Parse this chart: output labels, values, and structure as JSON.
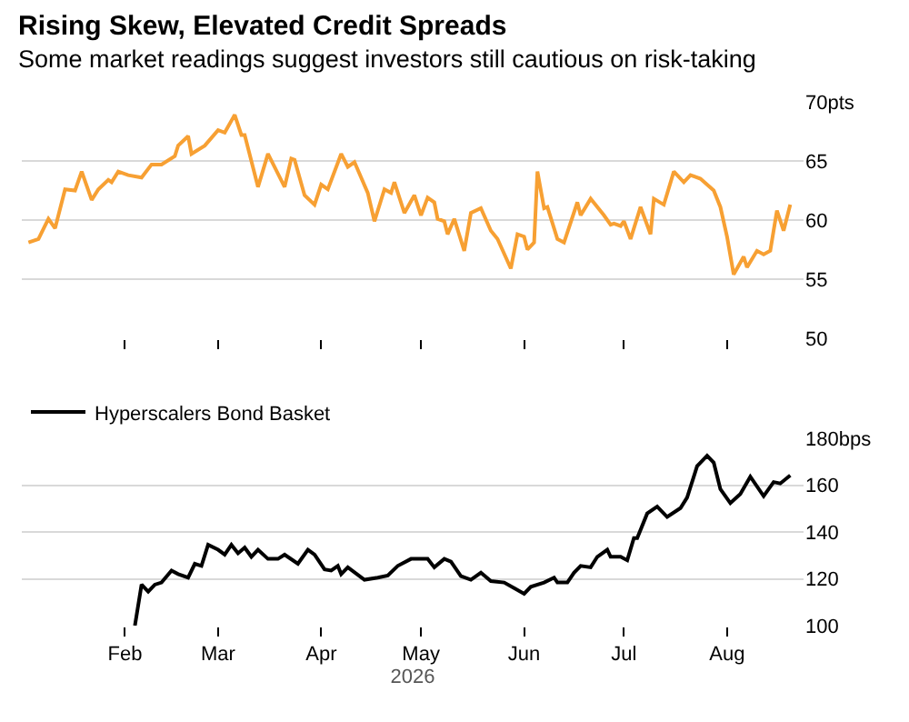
{
  "chart_data": [
    {
      "type": "line",
      "title": "Rising Skew, Elevated Credit Spreads",
      "subtitle": "Some market readings suggest investors still cautious on risk-taking",
      "grid": "y",
      "legend": false,
      "tick_labels": "y",
      "marker": "none",
      "line_style": "solid",
      "xlim": [
        "2026-01-01",
        "2026-08-24"
      ],
      "xticks": [
        {
          "value": "2026-02-01",
          "label": null
        },
        {
          "value": "2026-03-01",
          "label": null
        },
        {
          "value": "2026-04-01",
          "label": null
        },
        {
          "value": "2026-05-01",
          "label": null
        },
        {
          "value": "2026-06-01",
          "label": null
        },
        {
          "value": "2026-07-01",
          "label": null
        },
        {
          "value": "2026-08-01",
          "label": null
        }
      ],
      "ylim": [
        50,
        70
      ],
      "yticks": [
        50,
        55,
        60,
        65,
        {
          "value": 70,
          "label": "70pts"
        }
      ],
      "series": [
        {
          "color": "#f7a033",
          "x": [
            "2026-01-03",
            "2026-01-06",
            "2026-01-09",
            "2026-01-11",
            "2026-01-14",
            "2026-01-17",
            "2026-01-19",
            "2026-01-22",
            "2026-01-24",
            "2026-01-27",
            "2026-01-28",
            "2026-01-30",
            "2026-02-02",
            "2026-02-06",
            "2026-02-09",
            "2026-02-12",
            "2026-02-16",
            "2026-02-17",
            "2026-02-20",
            "2026-02-21",
            "2026-02-25",
            "2026-03-01",
            "2026-03-03",
            "2026-03-06",
            "2026-03-08",
            "2026-03-09",
            "2026-03-13",
            "2026-03-16",
            "2026-03-21",
            "2026-03-23",
            "2026-03-24",
            "2026-03-27",
            "2026-03-30",
            "2026-04-01",
            "2026-04-03",
            "2026-04-07",
            "2026-04-09",
            "2026-04-11",
            "2026-04-15",
            "2026-04-17",
            "2026-04-20",
            "2026-04-22",
            "2026-04-23",
            "2026-04-26",
            "2026-04-29",
            "2026-05-01",
            "2026-05-03",
            "2026-05-05",
            "2026-05-06",
            "2026-05-08",
            "2026-05-09",
            "2026-05-11",
            "2026-05-14",
            "2026-05-16",
            "2026-05-19",
            "2026-05-22",
            "2026-05-24",
            "2026-05-28",
            "2026-05-30",
            "2026-06-01",
            "2026-06-02",
            "2026-06-04",
            "2026-06-05",
            "2026-06-07",
            "2026-06-08",
            "2026-06-11",
            "2026-06-13",
            "2026-06-17",
            "2026-06-18",
            "2026-06-21",
            "2026-06-25",
            "2026-06-27",
            "2026-06-28",
            "2026-06-30",
            "2026-07-01",
            "2026-07-03",
            "2026-07-06",
            "2026-07-09",
            "2026-07-10",
            "2026-07-13",
            "2026-07-16",
            "2026-07-19",
            "2026-07-21",
            "2026-07-24",
            "2026-07-28",
            "2026-07-30",
            "2026-08-01",
            "2026-08-03",
            "2026-08-06",
            "2026-08-07",
            "2026-08-10",
            "2026-08-12",
            "2026-08-14",
            "2026-08-16",
            "2026-08-18",
            "2026-08-20"
          ],
          "values": [
            58.1,
            58.4,
            60.1,
            59.3,
            62.6,
            62.5,
            64.1,
            61.7,
            62.6,
            63.4,
            63.2,
            64.1,
            63.8,
            63.6,
            64.7,
            64.7,
            65.4,
            66.3,
            67.1,
            65.6,
            66.3,
            67.6,
            67.4,
            68.9,
            67.2,
            67.2,
            62.8,
            65.6,
            62.8,
            65.2,
            65.1,
            62.1,
            61.3,
            63.0,
            62.6,
            65.6,
            64.5,
            64.9,
            62.3,
            59.9,
            62.6,
            62.3,
            63.2,
            60.6,
            62.1,
            60.4,
            61.9,
            61.5,
            60.1,
            59.9,
            58.8,
            60.1,
            57.4,
            60.6,
            61.0,
            59.1,
            58.4,
            55.9,
            58.8,
            58.6,
            57.5,
            58.1,
            64.1,
            61.0,
            61.1,
            58.4,
            58.1,
            61.5,
            60.4,
            61.8,
            60.4,
            59.6,
            59.7,
            59.5,
            59.9,
            58.4,
            61.1,
            58.8,
            61.8,
            61.3,
            64.1,
            63.2,
            63.8,
            63.5,
            62.5,
            61.1,
            58.6,
            55.4,
            56.9,
            56.0,
            57.4,
            57.1,
            57.4,
            60.8,
            59.1,
            61.3
          ]
        }
      ]
    },
    {
      "type": "line",
      "xlabel": "2026",
      "grid": "y",
      "legend": "top left",
      "marker": "none",
      "line_style": "solid",
      "xlim": [
        "2026-01-01",
        "2026-08-24"
      ],
      "xticks": [
        {
          "value": "2026-02-01",
          "label": "Feb"
        },
        {
          "value": "2026-03-01",
          "label": "Mar"
        },
        {
          "value": "2026-04-01",
          "label": "Apr"
        },
        {
          "value": "2026-05-01",
          "label": "May"
        },
        {
          "value": "2026-06-01",
          "label": "Jun"
        },
        {
          "value": "2026-07-01",
          "label": "Jul"
        },
        {
          "value": "2026-08-01",
          "label": "Aug"
        }
      ],
      "ylim": [
        100,
        180
      ],
      "yticks": [
        100,
        120,
        140,
        160,
        {
          "value": 180,
          "label": "180bps"
        }
      ],
      "series": [
        {
          "name": "Hyperscalers Bond Basket",
          "color": "#000000",
          "x": [
            "2026-02-04",
            "2026-02-06",
            "2026-02-08",
            "2026-02-10",
            "2026-02-12",
            "2026-02-15",
            "2026-02-17",
            "2026-02-20",
            "2026-02-22",
            "2026-02-24",
            "2026-02-26",
            "2026-03-01",
            "2026-03-03",
            "2026-03-05",
            "2026-03-07",
            "2026-03-09",
            "2026-03-11",
            "2026-03-13",
            "2026-03-16",
            "2026-03-19",
            "2026-03-21",
            "2026-03-25",
            "2026-03-28",
            "2026-03-30",
            "2026-04-02",
            "2026-04-04",
            "2026-04-06",
            "2026-04-07",
            "2026-04-09",
            "2026-04-14",
            "2026-04-18",
            "2026-04-21",
            "2026-04-24",
            "2026-04-28",
            "2026-05-01",
            "2026-05-03",
            "2026-05-05",
            "2026-05-08",
            "2026-05-10",
            "2026-05-13",
            "2026-05-16",
            "2026-05-19",
            "2026-05-22",
            "2026-05-26",
            "2026-05-29",
            "2026-06-01",
            "2026-06-03",
            "2026-06-07",
            "2026-06-10",
            "2026-06-11",
            "2026-06-14",
            "2026-06-16",
            "2026-06-18",
            "2026-06-21",
            "2026-06-23",
            "2026-06-26",
            "2026-06-27",
            "2026-06-30",
            "2026-07-02",
            "2026-07-04",
            "2026-07-05",
            "2026-07-08",
            "2026-07-11",
            "2026-07-14",
            "2026-07-18",
            "2026-07-20",
            "2026-07-23",
            "2026-07-26",
            "2026-07-28",
            "2026-07-30",
            "2026-08-02",
            "2026-08-05",
            "2026-08-08",
            "2026-08-12",
            "2026-08-15",
            "2026-08-17",
            "2026-08-20"
          ],
          "values": [
            100,
            117.5,
            114.5,
            117.5,
            118.4,
            123.5,
            122,
            120.5,
            126.4,
            125.5,
            134.5,
            132.4,
            130.3,
            134.5,
            130.9,
            133.3,
            129.4,
            132.4,
            128.5,
            128.5,
            130.3,
            126.4,
            132.4,
            130.3,
            124,
            123.5,
            125.5,
            122,
            124.9,
            119.6,
            120.5,
            121.4,
            125.5,
            128.5,
            128.5,
            128.5,
            124.9,
            128.5,
            127.3,
            121.1,
            119.6,
            122.6,
            119,
            118.4,
            116,
            113.6,
            116.6,
            118.4,
            120.5,
            118.4,
            118.4,
            122.6,
            125.5,
            124.9,
            129.4,
            132.4,
            129.4,
            129.4,
            127.9,
            137.4,
            137.4,
            147.9,
            150.8,
            146.4,
            150.2,
            154.7,
            168.1,
            172.6,
            169.6,
            158.3,
            152.3,
            156.2,
            163.6,
            155.3,
            161.3,
            160.7,
            164.2
          ]
        }
      ]
    }
  ]
}
